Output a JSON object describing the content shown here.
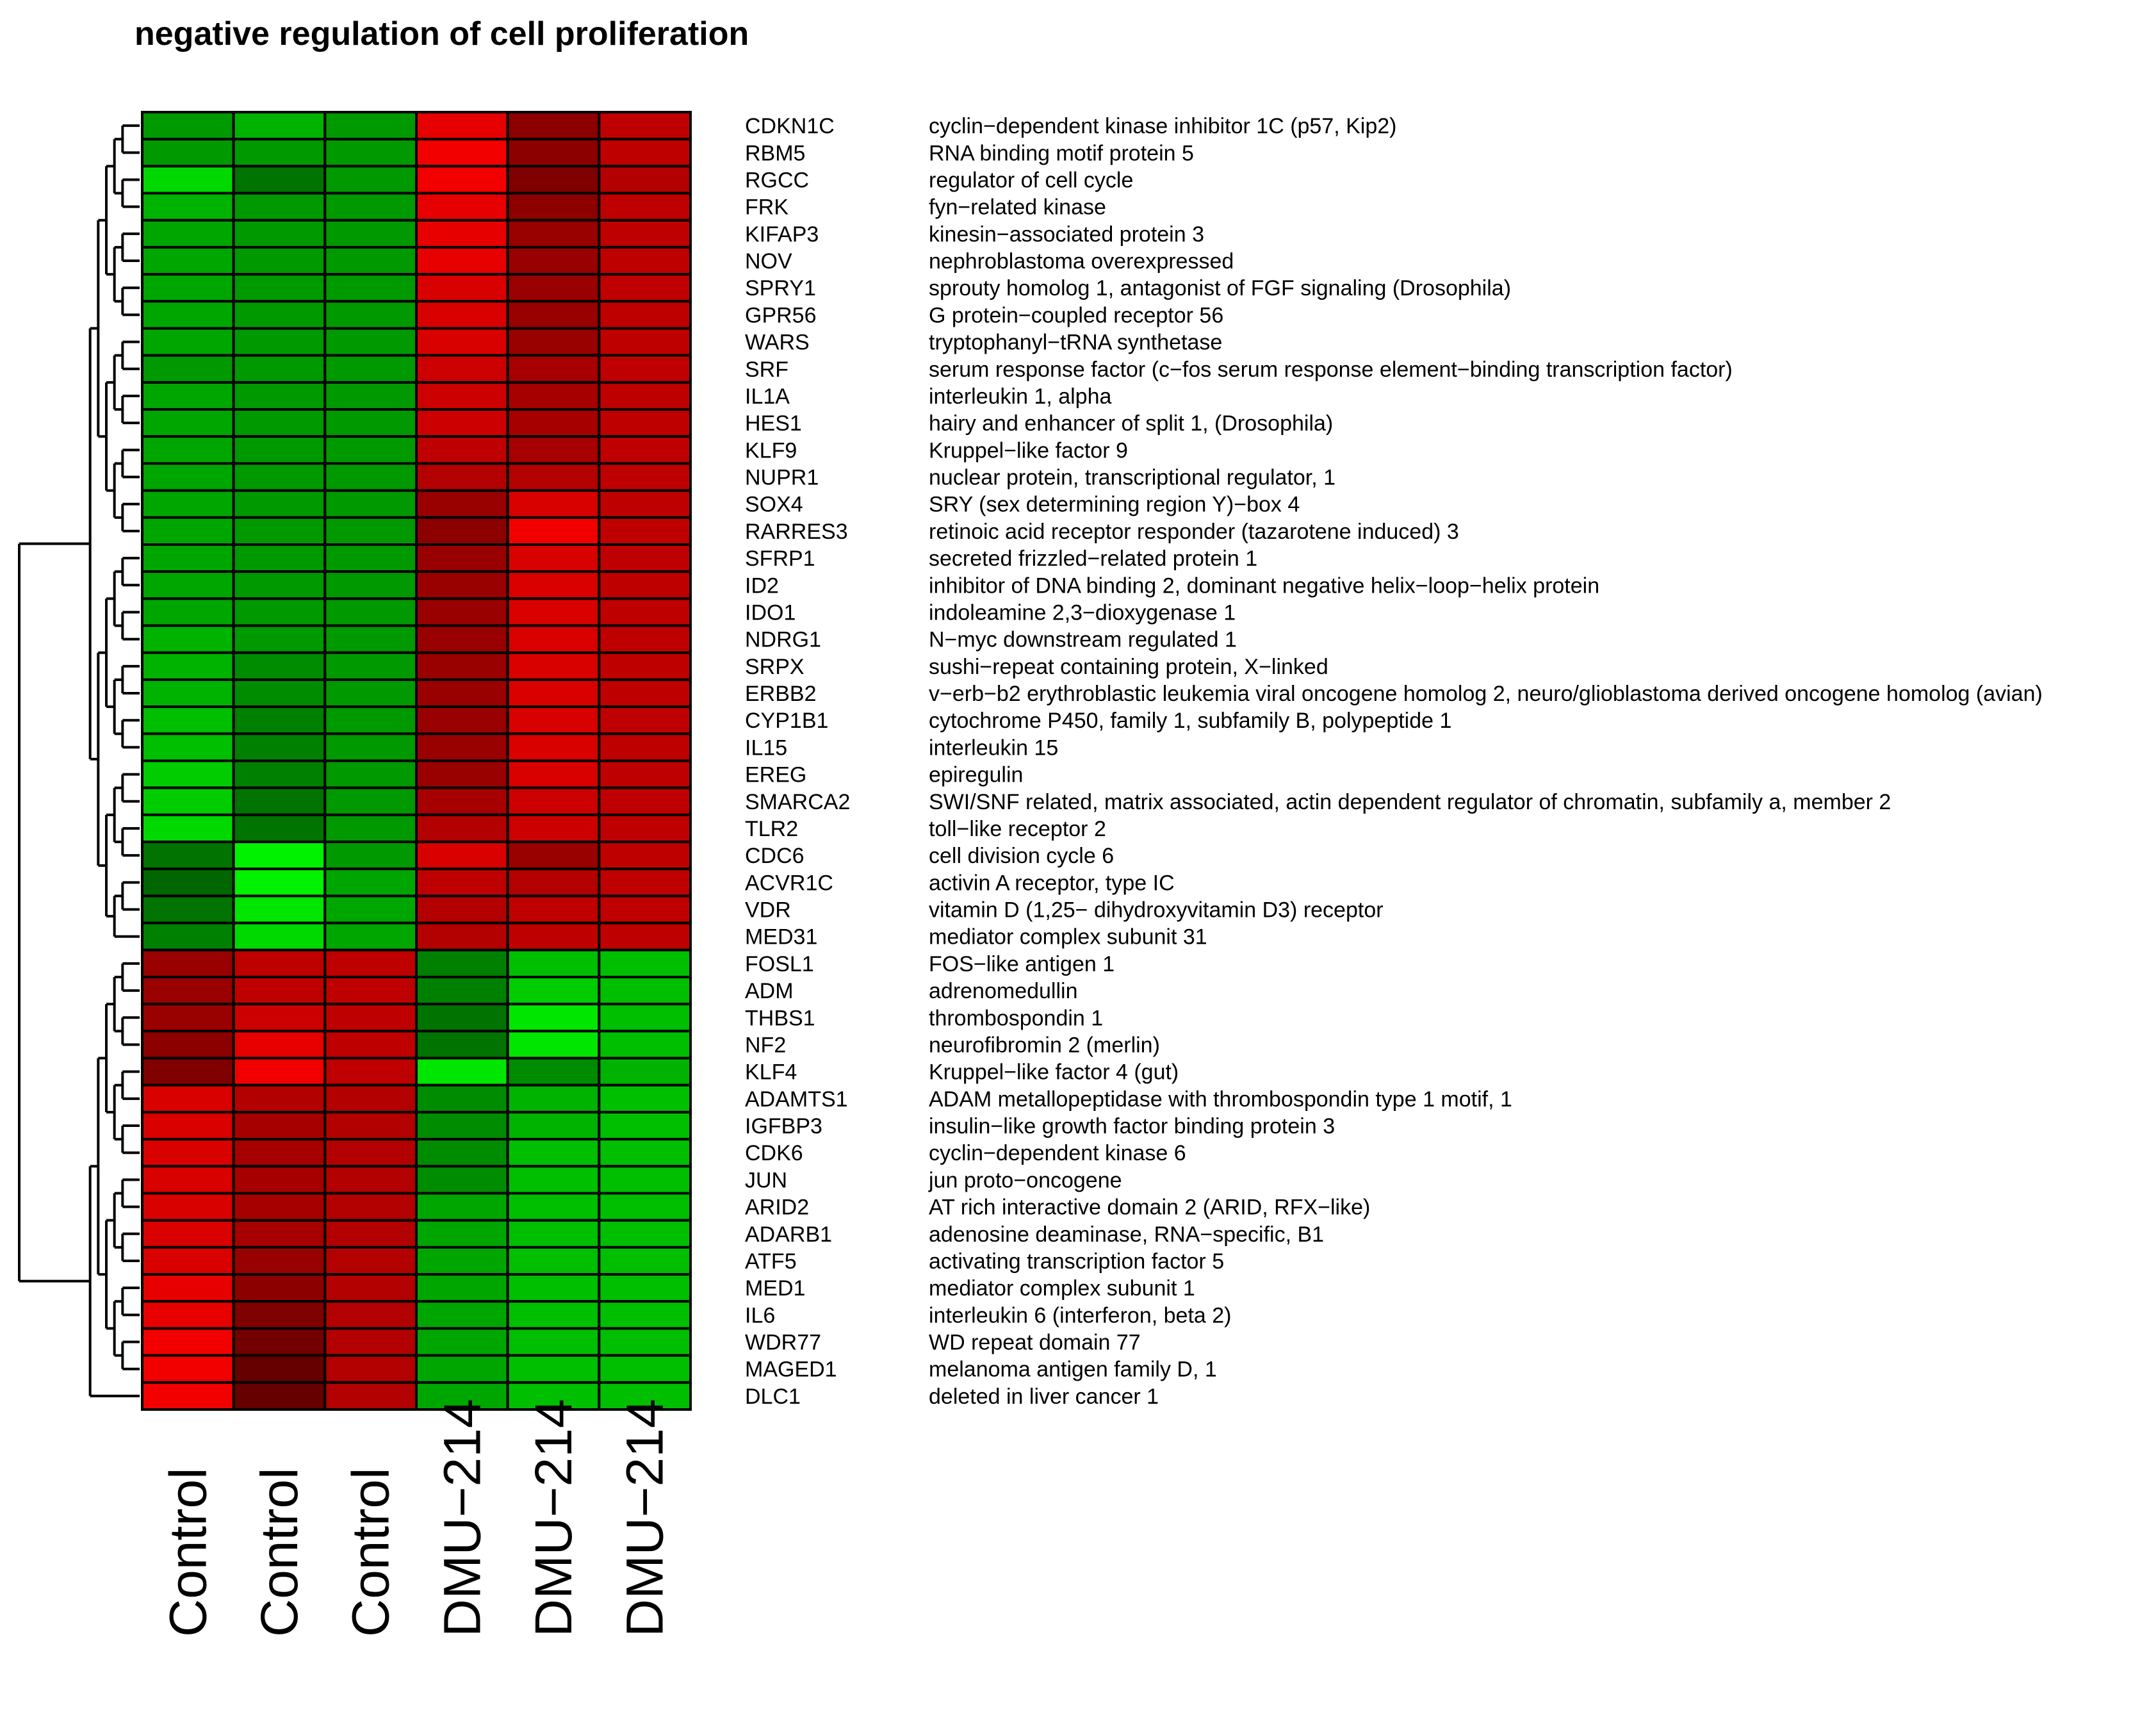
{
  "chart_data": {
    "type": "heatmap",
    "title": "negative regulation of cell proliferation",
    "columns": [
      "Control",
      "Control",
      "Control",
      "DMU−214",
      "DMU−214",
      "DMU−214"
    ],
    "rows": [
      {
        "gene": "CDKN1C",
        "description": "cyclin−dependent kinase inhibitor 1C (p57, Kip2)",
        "values": [
          -0.6,
          -0.7,
          -0.6,
          0.9,
          0.55,
          0.75
        ]
      },
      {
        "gene": "RBM5",
        "description": "RNA binding motif protein 5",
        "values": [
          -0.6,
          -0.6,
          -0.6,
          0.95,
          0.55,
          0.75
        ]
      },
      {
        "gene": "RGCC",
        "description": "regulator of cell cycle",
        "values": [
          -0.85,
          -0.45,
          -0.6,
          0.95,
          0.5,
          0.7
        ]
      },
      {
        "gene": "FRK",
        "description": "fyn−related kinase",
        "values": [
          -0.7,
          -0.6,
          -0.6,
          0.9,
          0.55,
          0.75
        ]
      },
      {
        "gene": "KIFAP3",
        "description": "kinesin−associated protein 3",
        "values": [
          -0.65,
          -0.6,
          -0.6,
          0.9,
          0.6,
          0.75
        ]
      },
      {
        "gene": "NOV",
        "description": "nephroblastoma overexpressed",
        "values": [
          -0.65,
          -0.6,
          -0.6,
          0.9,
          0.6,
          0.75
        ]
      },
      {
        "gene": "SPRY1",
        "description": "sprouty homolog 1, antagonist of FGF signaling (Drosophila)",
        "values": [
          -0.65,
          -0.6,
          -0.6,
          0.85,
          0.6,
          0.75
        ]
      },
      {
        "gene": "GPR56",
        "description": "G protein−coupled receptor 56",
        "values": [
          -0.65,
          -0.6,
          -0.6,
          0.85,
          0.6,
          0.75
        ]
      },
      {
        "gene": "WARS",
        "description": "tryptophanyl−tRNA synthetase",
        "values": [
          -0.65,
          -0.6,
          -0.6,
          0.85,
          0.6,
          0.75
        ]
      },
      {
        "gene": "SRF",
        "description": "serum response factor (c−fos serum response element−binding transcription factor)",
        "values": [
          -0.6,
          -0.6,
          -0.6,
          0.8,
          0.65,
          0.75
        ]
      },
      {
        "gene": "IL1A",
        "description": "interleukin 1, alpha",
        "values": [
          -0.65,
          -0.6,
          -0.6,
          0.8,
          0.65,
          0.75
        ]
      },
      {
        "gene": "HES1",
        "description": "hairy and enhancer of split 1, (Drosophila)",
        "values": [
          -0.65,
          -0.6,
          -0.6,
          0.8,
          0.65,
          0.75
        ]
      },
      {
        "gene": "KLF9",
        "description": "Kruppel−like factor 9",
        "values": [
          -0.65,
          -0.6,
          -0.6,
          0.75,
          0.65,
          0.75
        ]
      },
      {
        "gene": "NUPR1",
        "description": "nuclear protein, transcriptional regulator, 1",
        "values": [
          -0.65,
          -0.6,
          -0.6,
          0.7,
          0.7,
          0.75
        ]
      },
      {
        "gene": "SOX4",
        "description": "SRY (sex determining region Y)−box 4",
        "values": [
          -0.65,
          -0.6,
          -0.6,
          0.6,
          0.85,
          0.75
        ]
      },
      {
        "gene": "RARRES3",
        "description": "retinoic acid receptor responder (tazarotene induced) 3",
        "values": [
          -0.65,
          -0.6,
          -0.6,
          0.55,
          0.95,
          0.75
        ]
      },
      {
        "gene": "SFRP1",
        "description": "secreted frizzled−related protein 1",
        "values": [
          -0.65,
          -0.6,
          -0.6,
          0.6,
          0.85,
          0.75
        ]
      },
      {
        "gene": "ID2",
        "description": "inhibitor of DNA binding 2, dominant negative helix−loop−helix protein",
        "values": [
          -0.65,
          -0.6,
          -0.6,
          0.6,
          0.85,
          0.75
        ]
      },
      {
        "gene": "IDO1",
        "description": "indoleamine 2,3−dioxygenase 1",
        "values": [
          -0.65,
          -0.6,
          -0.6,
          0.6,
          0.85,
          0.75
        ]
      },
      {
        "gene": "NDRG1",
        "description": "N−myc downstream regulated 1",
        "values": [
          -0.7,
          -0.6,
          -0.6,
          0.6,
          0.85,
          0.75
        ]
      },
      {
        "gene": "SRPX",
        "description": "sushi−repeat containing protein, X−linked",
        "values": [
          -0.7,
          -0.55,
          -0.6,
          0.6,
          0.85,
          0.75
        ]
      },
      {
        "gene": "ERBB2",
        "description": "v−erb−b2 erythroblastic leukemia viral oncogene homolog 2, neuro/glioblastoma derived oncogene homolog (avian)",
        "values": [
          -0.7,
          -0.55,
          -0.6,
          0.6,
          0.85,
          0.75
        ]
      },
      {
        "gene": "CYP1B1",
        "description": "cytochrome P450, family 1, subfamily B, polypeptide 1",
        "values": [
          -0.75,
          -0.5,
          -0.6,
          0.6,
          0.85,
          0.75
        ]
      },
      {
        "gene": "IL15",
        "description": "interleukin 15",
        "values": [
          -0.75,
          -0.5,
          -0.6,
          0.6,
          0.85,
          0.75
        ]
      },
      {
        "gene": "EREG",
        "description": "epiregulin",
        "values": [
          -0.8,
          -0.5,
          -0.6,
          0.6,
          0.85,
          0.75
        ]
      },
      {
        "gene": "SMARCA2",
        "description": "SWI/SNF related, matrix associated, actin dependent regulator of chromatin, subfamily a, member 2",
        "values": [
          -0.8,
          -0.45,
          -0.6,
          0.65,
          0.8,
          0.75
        ]
      },
      {
        "gene": "TLR2",
        "description": "toll−like receptor 2",
        "values": [
          -0.85,
          -0.45,
          -0.6,
          0.7,
          0.8,
          0.75
        ]
      },
      {
        "gene": "CDC6",
        "description": "cell division cycle 6",
        "values": [
          -0.45,
          -0.95,
          -0.6,
          0.85,
          0.6,
          0.75
        ]
      },
      {
        "gene": "ACVR1C",
        "description": "activin A receptor, type IC",
        "values": [
          -0.4,
          -0.95,
          -0.65,
          0.75,
          0.7,
          0.75
        ]
      },
      {
        "gene": "VDR",
        "description": "vitamin D (1,25− dihydroxyvitamin D3) receptor",
        "values": [
          -0.45,
          -0.9,
          -0.65,
          0.7,
          0.75,
          0.75
        ]
      },
      {
        "gene": "MED31",
        "description": "mediator complex subunit 31",
        "values": [
          -0.5,
          -0.85,
          -0.65,
          0.7,
          0.75,
          0.75
        ]
      },
      {
        "gene": "FOSL1",
        "description": "FOS−like antigen 1",
        "values": [
          0.6,
          0.75,
          0.75,
          -0.5,
          -0.75,
          -0.75
        ]
      },
      {
        "gene": "ADM",
        "description": "adrenomedullin",
        "values": [
          0.6,
          0.75,
          0.75,
          -0.5,
          -0.8,
          -0.75
        ]
      },
      {
        "gene": "THBS1",
        "description": "thrombospondin 1",
        "values": [
          0.6,
          0.8,
          0.75,
          -0.45,
          -0.9,
          -0.75
        ]
      },
      {
        "gene": "NF2",
        "description": "neurofibromin 2 (merlin)",
        "values": [
          0.55,
          0.9,
          0.75,
          -0.45,
          -0.9,
          -0.75
        ]
      },
      {
        "gene": "KLF4",
        "description": "Kruppel−like factor 4 (gut)",
        "values": [
          0.5,
          0.95,
          0.75,
          -0.9,
          -0.55,
          -0.7
        ]
      },
      {
        "gene": "ADAMTS1",
        "description": "ADAM metallopeptidase with thrombospondin type 1 motif, 1",
        "values": [
          0.85,
          0.7,
          0.7,
          -0.55,
          -0.7,
          -0.75
        ]
      },
      {
        "gene": "IGFBP3",
        "description": "insulin−like growth factor binding protein 3",
        "values": [
          0.85,
          0.65,
          0.7,
          -0.55,
          -0.7,
          -0.75
        ]
      },
      {
        "gene": "CDK6",
        "description": "cyclin−dependent kinase 6",
        "values": [
          0.85,
          0.65,
          0.7,
          -0.55,
          -0.75,
          -0.75
        ]
      },
      {
        "gene": "JUN",
        "description": "jun proto−oncogene",
        "values": [
          0.85,
          0.65,
          0.7,
          -0.55,
          -0.75,
          -0.75
        ]
      },
      {
        "gene": "ARID2",
        "description": "AT rich interactive domain 2 (ARID, RFX−like)",
        "values": [
          0.85,
          0.65,
          0.7,
          -0.65,
          -0.75,
          -0.75
        ]
      },
      {
        "gene": "ADARB1",
        "description": "adenosine deaminase, RNA−specific, B1",
        "values": [
          0.85,
          0.65,
          0.7,
          -0.65,
          -0.75,
          -0.75
        ]
      },
      {
        "gene": "ATF5",
        "description": "activating transcription factor 5",
        "values": [
          0.85,
          0.6,
          0.7,
          -0.65,
          -0.75,
          -0.75
        ]
      },
      {
        "gene": "MED1",
        "description": "mediator complex subunit 1",
        "values": [
          0.9,
          0.55,
          0.7,
          -0.65,
          -0.75,
          -0.75
        ]
      },
      {
        "gene": "IL6",
        "description": "interleukin 6 (interferon, beta 2)",
        "values": [
          0.9,
          0.5,
          0.7,
          -0.65,
          -0.75,
          -0.75
        ]
      },
      {
        "gene": "WDR77",
        "description": "WD repeat domain 77",
        "values": [
          0.95,
          0.45,
          0.7,
          -0.65,
          -0.75,
          -0.75
        ]
      },
      {
        "gene": "MAGED1",
        "description": "melanoma antigen family D, 1",
        "values": [
          0.95,
          0.4,
          0.7,
          -0.65,
          -0.75,
          -0.75
        ]
      },
      {
        "gene": "DLC1",
        "description": "deleted in liver cancer 1",
        "values": [
          0.95,
          0.4,
          0.7,
          -0.65,
          -0.75,
          -0.75
        ]
      }
    ],
    "color_scale": {
      "low": "#00ff00",
      "mid": "#000000",
      "high": "#ff0000"
    },
    "row_dendrogram": true
  }
}
